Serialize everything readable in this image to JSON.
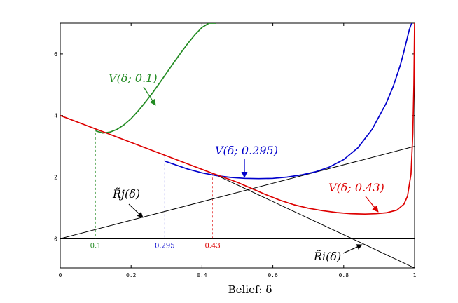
{
  "chart_data": {
    "type": "line",
    "title": "",
    "xlabel": "Belief: δ",
    "ylabel": "",
    "xlim": [
      0,
      1
    ],
    "ylim": [
      -0.95,
      7
    ],
    "x_ticks": [
      "0",
      "0.2",
      "0.4",
      "0.6",
      "0.8",
      "1"
    ],
    "y_ticks": [
      "0",
      "2",
      "4",
      "6"
    ],
    "grid": false,
    "legend": "none",
    "series": [
      {
        "name": "V(δ; 0.1)",
        "color": "#228B22",
        "x": [
          0.1,
          0.12,
          0.14,
          0.16,
          0.18,
          0.2,
          0.22,
          0.24,
          0.26,
          0.28,
          0.3,
          0.32,
          0.34,
          0.36,
          0.38,
          0.4,
          0.42,
          0.44
        ],
        "y": [
          3.5,
          3.43,
          3.46,
          3.55,
          3.7,
          3.9,
          4.15,
          4.43,
          4.73,
          5.05,
          5.38,
          5.71,
          6.03,
          6.34,
          6.62,
          6.86,
          7.0,
          7.0
        ]
      },
      {
        "name": "V(δ; 0.295)",
        "color": "#0000CC",
        "x": [
          0.295,
          0.33,
          0.36,
          0.4,
          0.44,
          0.48,
          0.52,
          0.56,
          0.6,
          0.64,
          0.68,
          0.72,
          0.76,
          0.8,
          0.84,
          0.88,
          0.92,
          0.94,
          0.96,
          0.97,
          0.98,
          0.985,
          0.99,
          0.993
        ],
        "y": [
          2.52,
          2.38,
          2.26,
          2.14,
          2.05,
          1.99,
          1.96,
          1.95,
          1.96,
          2.0,
          2.07,
          2.17,
          2.33,
          2.57,
          2.95,
          3.55,
          4.4,
          4.95,
          5.65,
          6.08,
          6.55,
          6.78,
          6.95,
          7.0
        ]
      },
      {
        "name": "V(δ; 0.43)",
        "color": "#DD0000",
        "x": [
          0.43,
          0.46,
          0.5,
          0.54,
          0.58,
          0.62,
          0.66,
          0.7,
          0.74,
          0.78,
          0.82,
          0.86,
          0.89,
          0.92,
          0.95,
          0.97,
          0.98,
          0.99,
          0.995,
          0.998,
          1.0
        ],
        "y": [
          2.12,
          2.0,
          1.83,
          1.63,
          1.43,
          1.25,
          1.1,
          0.99,
          0.91,
          0.85,
          0.81,
          0.8,
          0.81,
          0.84,
          0.93,
          1.12,
          1.38,
          2.1,
          3.4,
          5.0,
          7.0
        ]
      },
      {
        "name": "R̃i(δ)",
        "color": "#DD0000",
        "x": [
          0,
          0.43
        ],
        "y": [
          4.0,
          2.12
        ]
      },
      {
        "name": "R̃i(δ)",
        "color": "#000000",
        "x": [
          0.43,
          1.0
        ],
        "y": [
          2.12,
          -0.95
        ]
      },
      {
        "name": "R̃j(δ)",
        "color": "#000000",
        "x": [
          0,
          1.0
        ],
        "y": [
          0,
          3.0
        ]
      }
    ],
    "guides": [
      {
        "x": 0.1,
        "label": "0.1",
        "color": "#228B22"
      },
      {
        "x": 0.295,
        "label": "0.295",
        "color": "#0000CC"
      },
      {
        "x": 0.43,
        "label": "0.43",
        "color": "#DD0000"
      }
    ],
    "annotations": [
      {
        "text": "V(δ; 0.1)",
        "color": "#228B22"
      },
      {
        "text": "V(δ; 0.295)",
        "color": "#0000CC"
      },
      {
        "text": "V(δ; 0.43)",
        "color": "#DD0000"
      },
      {
        "text": "R̃j(δ)",
        "color": "#000000"
      },
      {
        "text": "R̃i(δ)",
        "color": "#000000"
      }
    ]
  }
}
